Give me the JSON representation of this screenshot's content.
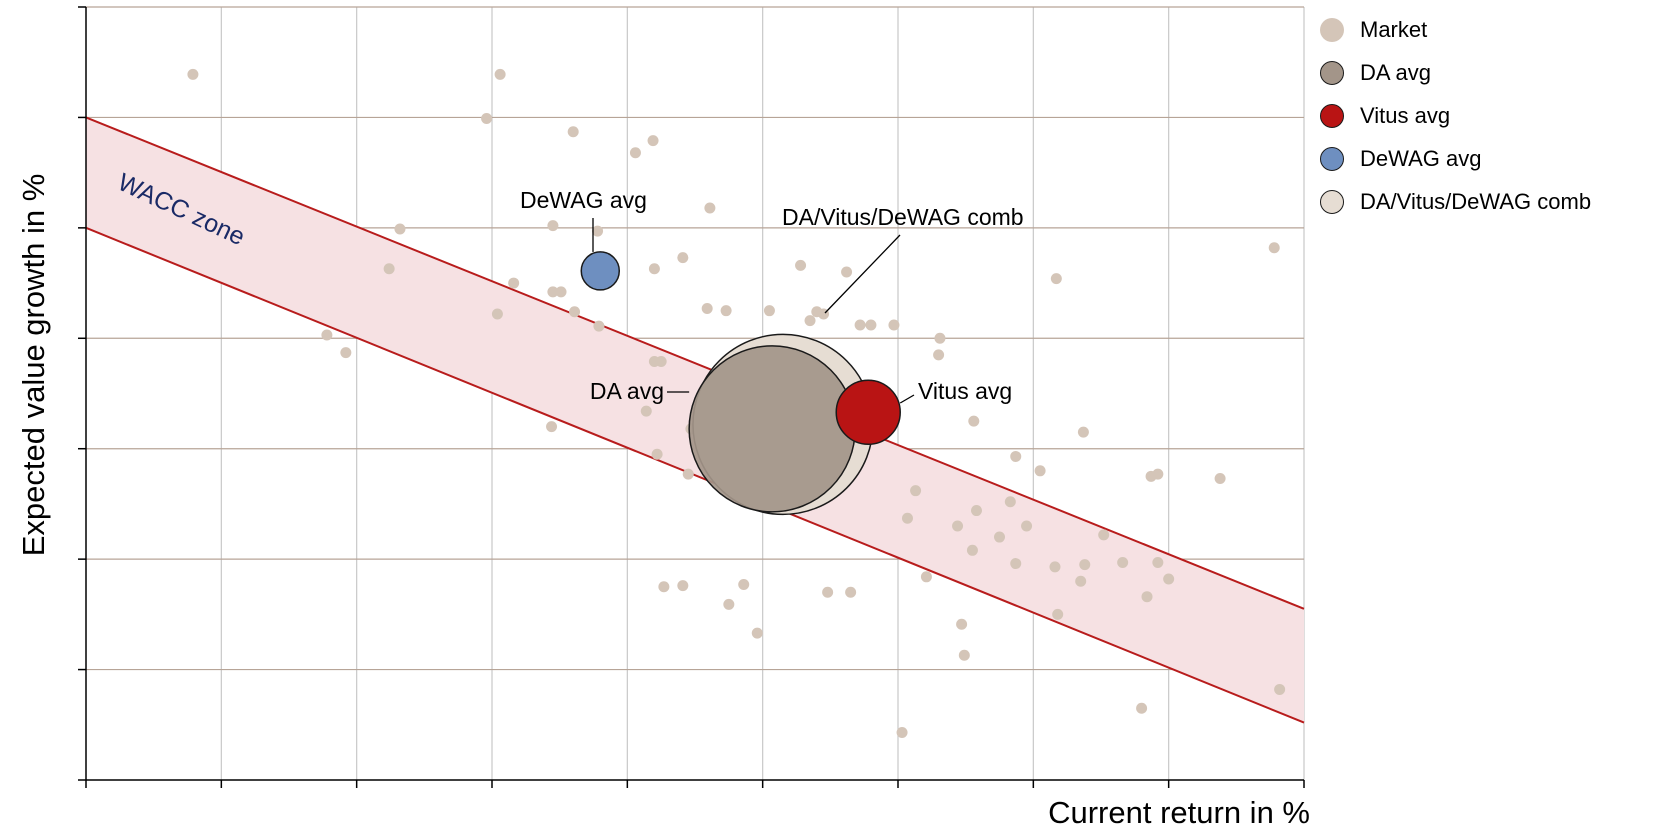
{
  "chart_data": {
    "type": "scatter",
    "title": "",
    "xlabel": "Current return in %",
    "ylabel": "Expected value growth in %",
    "x_tick_count": 10,
    "y_tick_count": 8,
    "xlim": [
      0,
      9
    ],
    "ylim": [
      0,
      7
    ],
    "grid": true,
    "legend_position": "right",
    "zone": {
      "label": "WACC zone",
      "upper_line": [
        [
          0,
          6
        ],
        [
          9,
          1.55
        ]
      ],
      "lower_line": [
        [
          0,
          5
        ],
        [
          9,
          0.52
        ]
      ],
      "fill_color": "#f6e1e3",
      "line_color": "#b81c1c"
    },
    "series": [
      {
        "name": "Market",
        "color": "#d4c5b8",
        "points": [
          [
            0.79,
            6.39
          ],
          [
            3.06,
            6.39
          ],
          [
            2.96,
            5.99
          ],
          [
            3.6,
            5.87
          ],
          [
            4.19,
            5.79
          ],
          [
            4.06,
            5.68
          ],
          [
            2.32,
            4.99
          ],
          [
            2.24,
            4.63
          ],
          [
            1.78,
            4.03
          ],
          [
            1.92,
            3.87
          ],
          [
            3.45,
            5.02
          ],
          [
            3.78,
            4.97
          ],
          [
            4.41,
            4.73
          ],
          [
            3.16,
            4.5
          ],
          [
            3.45,
            4.42
          ],
          [
            3.51,
            4.42
          ],
          [
            4.2,
            4.63
          ],
          [
            3.04,
            4.22
          ],
          [
            3.61,
            4.24
          ],
          [
            3.79,
            4.11
          ],
          [
            4.61,
            5.18
          ],
          [
            5.28,
            4.66
          ],
          [
            5.62,
            4.6
          ],
          [
            7.17,
            4.54
          ],
          [
            8.78,
            4.82
          ],
          [
            4.59,
            4.27
          ],
          [
            4.73,
            4.25
          ],
          [
            5.05,
            4.25
          ],
          [
            5.4,
            4.24
          ],
          [
            5.45,
            4.22
          ],
          [
            5.35,
            4.16
          ],
          [
            5.8,
            4.12
          ],
          [
            5.97,
            4.12
          ],
          [
            6.3,
            3.85
          ],
          [
            6.31,
            4.0
          ],
          [
            5.07,
            3.97
          ],
          [
            4.2,
            3.79
          ],
          [
            4.25,
            3.79
          ],
          [
            4.88,
            3.68
          ],
          [
            5.27,
            3.68
          ],
          [
            5.02,
            3.54
          ],
          [
            4.97,
            3.45
          ],
          [
            5.4,
            3.44
          ],
          [
            5.45,
            3.44
          ],
          [
            5.37,
            3.4
          ],
          [
            5.75,
            3.4
          ],
          [
            4.14,
            3.34
          ],
          [
            4.98,
            3.17
          ],
          [
            3.44,
            3.2
          ],
          [
            4.47,
            3.18
          ],
          [
            6.56,
            3.25
          ],
          [
            7.37,
            3.15
          ],
          [
            6.87,
            2.93
          ],
          [
            7.05,
            2.8
          ],
          [
            7.87,
            2.75
          ],
          [
            4.22,
            2.95
          ],
          [
            4.45,
            2.77
          ],
          [
            5.27,
            2.65
          ],
          [
            5.35,
            2.63
          ],
          [
            5.43,
            2.65
          ],
          [
            5.54,
            2.67
          ],
          [
            6.13,
            2.62
          ],
          [
            6.58,
            2.44
          ],
          [
            6.44,
            2.3
          ],
          [
            6.83,
            2.52
          ],
          [
            7.92,
            2.77
          ],
          [
            8.38,
            2.73
          ],
          [
            6.07,
            2.37
          ],
          [
            6.75,
            2.2
          ],
          [
            6.95,
            2.3
          ],
          [
            7.52,
            2.22
          ],
          [
            6.55,
            2.08
          ],
          [
            6.87,
            1.96
          ],
          [
            7.16,
            1.93
          ],
          [
            7.38,
            1.95
          ],
          [
            7.66,
            1.97
          ],
          [
            7.92,
            1.97
          ],
          [
            8.0,
            1.82
          ],
          [
            6.21,
            1.84
          ],
          [
            7.84,
            1.66
          ],
          [
            7.35,
            1.8
          ],
          [
            4.86,
            1.77
          ],
          [
            5.48,
            1.7
          ],
          [
            4.27,
            1.75
          ],
          [
            4.41,
            1.76
          ],
          [
            4.75,
            1.59
          ],
          [
            6.47,
            1.41
          ],
          [
            7.18,
            1.5
          ],
          [
            4.96,
            1.33
          ],
          [
            6.49,
            1.13
          ],
          [
            7.8,
            0.65
          ],
          [
            8.82,
            0.82
          ],
          [
            6.03,
            0.43
          ],
          [
            5.65,
            1.7
          ],
          [
            5.72,
            4.12
          ]
        ]
      },
      {
        "name": "DA avg",
        "color": "#a39589",
        "points": [
          [
            5.07,
            3.18
          ]
        ]
      },
      {
        "name": "Vitus avg",
        "color": "#b91414",
        "points": [
          [
            5.78,
            3.33
          ]
        ]
      },
      {
        "name": "DeWAG avg",
        "color": "#6e8fc0",
        "points": [
          [
            3.8,
            4.61
          ]
        ]
      },
      {
        "name": "DA/Vitus/DeWAG comb",
        "color": "#e6ddd3",
        "points": [
          [
            5.15,
            3.22
          ]
        ]
      }
    ],
    "annotations": [
      {
        "text": "DeWAG avg",
        "target": "DeWAG avg"
      },
      {
        "text": "DA/Vitus/DeWAG comb",
        "target": "DA/Vitus/DeWAG comb"
      },
      {
        "text": "DA avg",
        "target": "DA avg"
      },
      {
        "text": "Vitus avg",
        "target": "Vitus avg"
      }
    ]
  }
}
